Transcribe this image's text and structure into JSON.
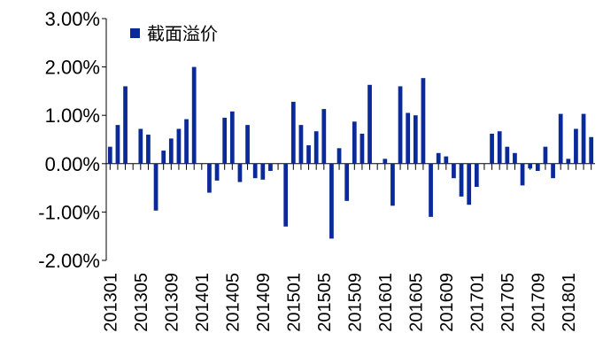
{
  "chart_data": {
    "type": "bar",
    "legend": {
      "label": "截面溢价",
      "position": "top-left"
    },
    "ylim": [
      -0.02,
      0.03
    ],
    "yticks": [
      "-2.00%",
      "-1.00%",
      "0.00%",
      "1.00%",
      "2.00%",
      "3.00%"
    ],
    "ytick_values": [
      -0.02,
      -0.01,
      0.0,
      0.01,
      0.02,
      0.03
    ],
    "xtick_labels": [
      "201301",
      "201305",
      "201309",
      "201401",
      "201405",
      "201409",
      "201501",
      "201505",
      "201509",
      "201601",
      "201605",
      "201609",
      "201701",
      "201705",
      "201709",
      "201801"
    ],
    "x": [
      "201301",
      "201302",
      "201303",
      "201304",
      "201305",
      "201306",
      "201307",
      "201308",
      "201309",
      "201310",
      "201311",
      "201312",
      "201401",
      "201402",
      "201403",
      "201404",
      "201405",
      "201406",
      "201407",
      "201408",
      "201409",
      "201410",
      "201411",
      "201412",
      "201501",
      "201502",
      "201503",
      "201504",
      "201505",
      "201506",
      "201507",
      "201508",
      "201509",
      "201510",
      "201511",
      "201512",
      "201601",
      "201602",
      "201603",
      "201604",
      "201605",
      "201606",
      "201607",
      "201608",
      "201609",
      "201610",
      "201611",
      "201612",
      "201701",
      "201702",
      "201703",
      "201704",
      "201705",
      "201706",
      "201707",
      "201708",
      "201709",
      "201710",
      "201711",
      "201712",
      "201801",
      "201802",
      "201803",
      "201804"
    ],
    "series": [
      {
        "color": "#0a2a9a",
        "values": [
          0.0035,
          0.008,
          0.016,
          0.0,
          0.0072,
          0.006,
          -0.0097,
          0.0027,
          0.0052,
          0.0072,
          0.0092,
          0.02,
          0.0,
          -0.006,
          -0.0035,
          0.0095,
          0.0108,
          -0.0038,
          0.008,
          -0.003,
          -0.0033,
          -0.0015,
          0.0,
          -0.013,
          0.0128,
          0.008,
          0.0038,
          0.0067,
          0.0113,
          -0.0155,
          0.0032,
          -0.0077,
          0.0087,
          0.0062,
          0.0163,
          0.0,
          0.001,
          -0.0087,
          0.016,
          0.0105,
          0.01,
          0.0177,
          -0.011,
          0.0022,
          0.0015,
          -0.003,
          -0.0068,
          -0.0085,
          -0.0048,
          0.0,
          0.0062,
          0.0067,
          0.0035,
          0.0022,
          -0.0045,
          -0.001,
          -0.0015,
          0.0035,
          -0.003,
          0.0103,
          0.001,
          0.0072,
          0.0103,
          0.0055
        ]
      }
    ],
    "grid": false
  }
}
